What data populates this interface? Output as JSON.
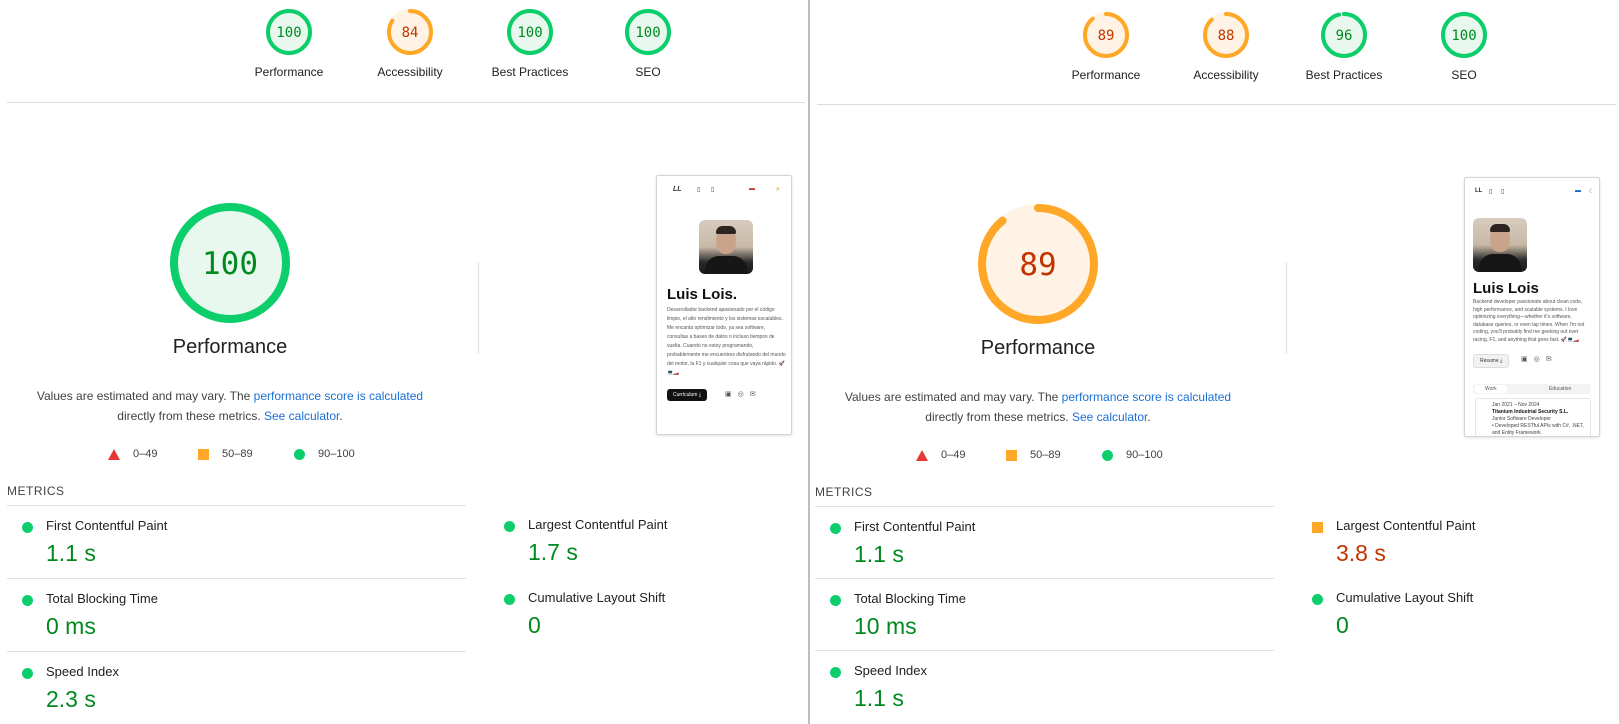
{
  "colors": {
    "pass": "#0cce6b",
    "pass_text": "#008a1e",
    "pass_fill": "#e8f8ee",
    "average": "#ffa726",
    "average_text": "#c33300",
    "average_fill": "#fff3e5",
    "fail": "#e53935",
    "link": "#1a6fd6"
  },
  "reports": [
    {
      "categories": [
        {
          "label": "Performance",
          "score": "100",
          "value": 100,
          "rating": "pass"
        },
        {
          "label": "Accessibility",
          "score": "84",
          "value": 84,
          "rating": "average"
        },
        {
          "label": "Best Practices",
          "score": "100",
          "value": 100,
          "rating": "pass"
        },
        {
          "label": "SEO",
          "score": "100",
          "value": 100,
          "rating": "pass"
        }
      ],
      "main": {
        "title": "Performance",
        "score": "100",
        "value": 100,
        "rating": "pass"
      },
      "description": {
        "prefix": "Values are estimated and may vary. The ",
        "link1": "performance score is calculated",
        "middle": " directly from these metrics. ",
        "link2": "See calculator",
        "suffix": "."
      },
      "legend": {
        "fail": "0–49",
        "average": "50–89",
        "pass": "90–100"
      },
      "metrics_heading": "METRICS",
      "metrics": [
        {
          "label": "First Contentful Paint",
          "value": "1.1 s",
          "rating": "pass"
        },
        {
          "label": "Largest Contentful Paint",
          "value": "1.7 s",
          "rating": "pass"
        },
        {
          "label": "Total Blocking Time",
          "value": "0 ms",
          "rating": "pass"
        },
        {
          "label": "Cumulative Layout Shift",
          "value": "0",
          "rating": "pass"
        },
        {
          "label": "Speed Index",
          "value": "2.3 s",
          "rating": "pass"
        }
      ],
      "thumbnail": {
        "logo": "LL",
        "name": "Luis Lois.",
        "bio": "Desarrollador backend apasionado por el código limpio, el alto rendimiento y los sistemas escalables. Me encanta optimizar todo, ya sea software, consultas a bases de datos o incluso tiempos de vuelta. Cuando no estoy programando, probablemente me encuentres disfrutando del mundo del motor, la F1 y cualquier cosa que vaya rápido. 🚀💻🏎️",
        "button": "Currículum ⤓"
      }
    },
    {
      "categories": [
        {
          "label": "Performance",
          "score": "89",
          "value": 89,
          "rating": "average"
        },
        {
          "label": "Accessibility",
          "score": "88",
          "value": 88,
          "rating": "average"
        },
        {
          "label": "Best Practices",
          "score": "96",
          "value": 96,
          "rating": "pass"
        },
        {
          "label": "SEO",
          "score": "100",
          "value": 100,
          "rating": "pass"
        }
      ],
      "main": {
        "title": "Performance",
        "score": "89",
        "value": 89,
        "rating": "average"
      },
      "description": {
        "prefix": "Values are estimated and may vary. The ",
        "link1": "performance score is calculated",
        "middle": " directly from these metrics. ",
        "link2": "See calculator",
        "suffix": "."
      },
      "legend": {
        "fail": "0–49",
        "average": "50–89",
        "pass": "90–100"
      },
      "metrics_heading": "METRICS",
      "metrics": [
        {
          "label": "First Contentful Paint",
          "value": "1.1 s",
          "rating": "pass"
        },
        {
          "label": "Largest Contentful Paint",
          "value": "3.8 s",
          "rating": "average"
        },
        {
          "label": "Total Blocking Time",
          "value": "10 ms",
          "rating": "pass"
        },
        {
          "label": "Cumulative Layout Shift",
          "value": "0",
          "rating": "pass"
        },
        {
          "label": "Speed Index",
          "value": "1.1 s",
          "rating": "pass"
        }
      ],
      "thumbnail": {
        "logo": "LL",
        "name": "Luis Lois",
        "bio": "Backend developer passionate about clean code, high performance, and scalable systems. I love optimizing everything—whether it's software, database queries, or even lap times. When I'm not coding, you'll probably find me geeking out over racing, F1, and anything that goes fast. 🚀💻🏎️",
        "button": "Resume ⤓",
        "tab_work": "Work",
        "tab_education": "Education",
        "job_dates": "Jan 2021 – Nov 2024",
        "job_company": "Titanium Industrial Security S.L.",
        "job_role": "Junior Software Developer",
        "job_detail": "• Developed RESTful APIs with C#, .NET, and Entity Framework."
      }
    }
  ]
}
